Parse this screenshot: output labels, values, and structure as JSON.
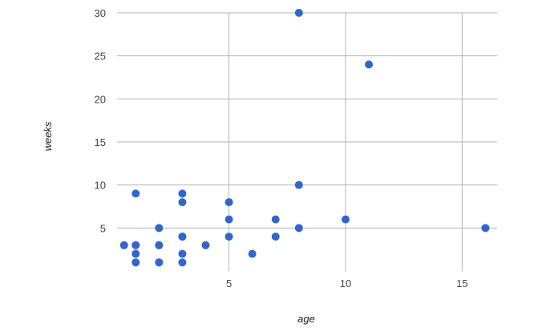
{
  "chart_data": {
    "type": "scatter",
    "title": "",
    "xlabel": "age",
    "ylabel": "weeks",
    "xlim": [
      0.2,
      16.5
    ],
    "ylim": [
      0,
      30
    ],
    "x_ticks": [
      5,
      10,
      15
    ],
    "y_ticks": [
      5,
      10,
      15,
      20,
      25,
      30
    ],
    "grid": true,
    "legend": "none",
    "marker_color": "#3366cc",
    "points": [
      {
        "x": 0.5,
        "y": 3
      },
      {
        "x": 1,
        "y": 9
      },
      {
        "x": 1,
        "y": 3
      },
      {
        "x": 1,
        "y": 3
      },
      {
        "x": 1,
        "y": 2
      },
      {
        "x": 1,
        "y": 1
      },
      {
        "x": 2,
        "y": 5
      },
      {
        "x": 2,
        "y": 3
      },
      {
        "x": 2,
        "y": 3
      },
      {
        "x": 2,
        "y": 1
      },
      {
        "x": 2,
        "y": 1
      },
      {
        "x": 3,
        "y": 9
      },
      {
        "x": 3,
        "y": 8
      },
      {
        "x": 3,
        "y": 4
      },
      {
        "x": 3,
        "y": 4
      },
      {
        "x": 3,
        "y": 2
      },
      {
        "x": 3,
        "y": 1
      },
      {
        "x": 4,
        "y": 3
      },
      {
        "x": 5,
        "y": 8
      },
      {
        "x": 5,
        "y": 6
      },
      {
        "x": 5,
        "y": 4
      },
      {
        "x": 6,
        "y": 2
      },
      {
        "x": 7,
        "y": 6
      },
      {
        "x": 7,
        "y": 4
      },
      {
        "x": 8,
        "y": 30
      },
      {
        "x": 8,
        "y": 10
      },
      {
        "x": 8,
        "y": 5
      },
      {
        "x": 10,
        "y": 6
      },
      {
        "x": 11,
        "y": 24
      },
      {
        "x": 16,
        "y": 5
      }
    ]
  }
}
